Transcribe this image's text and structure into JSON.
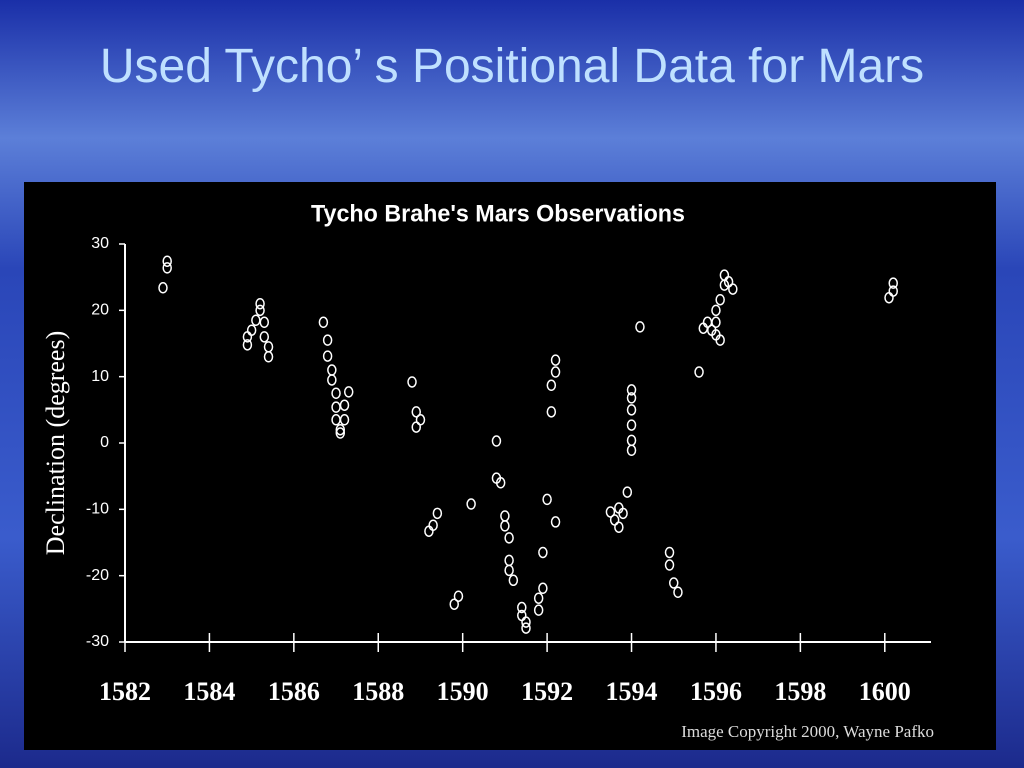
{
  "slide_title": "Used Tycho’ s Positional Data for Mars",
  "chart_data": {
    "type": "scatter",
    "title": "Tycho Brahe's Mars Observations",
    "y_label": "Declination (degrees)",
    "annotation": "Image Copyright 2000, Wayne Pafko",
    "color": "#ffffff",
    "x": [
      1582.9,
      1583.0,
      1583.0,
      1584.9,
      1584.9,
      1585.0,
      1585.1,
      1585.2,
      1585.2,
      1585.3,
      1585.3,
      1585.4,
      1585.4,
      1586.7,
      1586.8,
      1586.8,
      1586.9,
      1586.9,
      1587.0,
      1587.0,
      1587.0,
      1587.1,
      1587.1,
      1587.2,
      1587.2,
      1587.3,
      1588.8,
      1588.9,
      1588.9,
      1589.0,
      1589.2,
      1589.3,
      1589.4,
      1589.8,
      1589.9,
      1590.2,
      1590.8,
      1590.8,
      1590.9,
      1591.0,
      1591.0,
      1591.1,
      1591.1,
      1591.1,
      1591.2,
      1591.4,
      1591.4,
      1591.5,
      1591.5,
      1591.8,
      1591.8,
      1591.9,
      1591.9,
      1592.0,
      1592.1,
      1592.1,
      1592.2,
      1592.2,
      1592.2,
      1593.5,
      1593.6,
      1593.7,
      1593.7,
      1593.8,
      1593.9,
      1594.0,
      1594.0,
      1594.0,
      1594.0,
      1594.0,
      1594.0,
      1594.2,
      1594.9,
      1594.9,
      1595.0,
      1595.1,
      1595.6,
      1595.7,
      1595.8,
      1595.9,
      1596.0,
      1596.0,
      1596.0,
      1596.1,
      1596.1,
      1596.2,
      1596.2,
      1596.3,
      1596.4,
      1600.1,
      1600.2,
      1600.2
    ],
    "values": [
      23.4,
      26.4,
      27.4,
      16,
      14.8,
      17,
      18.5,
      20,
      21,
      18.2,
      16,
      14.5,
      13,
      18.2,
      15.5,
      13.1,
      11,
      9.5,
      7.5,
      5.4,
      3.5,
      2,
      1.5,
      3.5,
      5.7,
      7.7,
      9.2,
      4.7,
      2.4,
      3.5,
      -13.3,
      -12.4,
      -10.6,
      -24.3,
      -23.1,
      -9.2,
      0.3,
      -5.3,
      -6.0,
      -11,
      -12.5,
      -14.3,
      -17.7,
      -19.2,
      -20.7,
      -24.8,
      -26,
      -27,
      -27.9,
      -25.2,
      -23.4,
      -21.9,
      -16.5,
      -8.5,
      4.7,
      8.7,
      10.7,
      12.5,
      -11.9,
      -10.4,
      -11.6,
      -9.8,
      -12.7,
      -10.6,
      -7.4,
      -1.1,
      0.4,
      2.7,
      5,
      6.8,
      8,
      17.5,
      -16.5,
      -18.4,
      -21.1,
      -22.5,
      10.7,
      17.3,
      18.2,
      17,
      16.3,
      18.2,
      20,
      21.6,
      15.5,
      23.8,
      25.3,
      24.3,
      23.2,
      21.9,
      22.9,
      24.1
    ],
    "xlim": [
      1582,
      1601
    ],
    "ylim": [
      -30,
      30
    ],
    "xticks": [
      1582,
      1584,
      1586,
      1588,
      1590,
      1592,
      1594,
      1596,
      1598,
      1600
    ],
    "yticks": [
      -30,
      -20,
      -10,
      0,
      10,
      20,
      30
    ]
  }
}
